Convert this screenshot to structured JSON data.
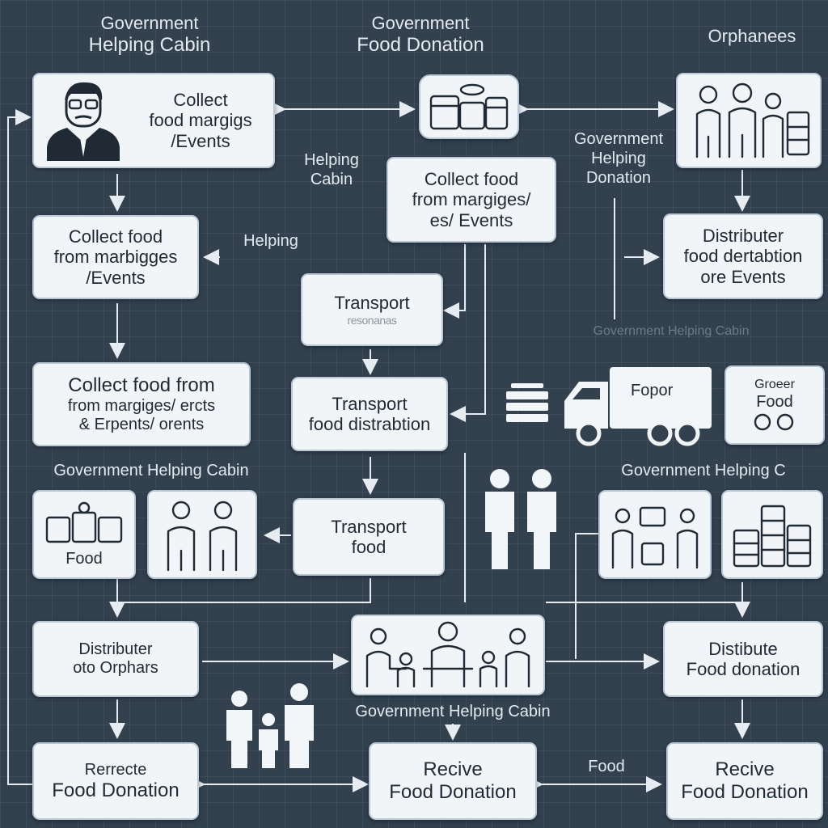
{
  "labels": {
    "gov_helping_cabin_top": [
      "Government",
      "Helping Cabin"
    ],
    "gov_food_donation_top": [
      "Government",
      "Food Donation"
    ],
    "orphanages_top": "Orphanees",
    "helping_cabin_mid": [
      "Helping",
      "Cabin"
    ],
    "gov_helping_donation_right": [
      "Government",
      "Helping",
      "Donation"
    ],
    "helping_left": "Helping",
    "gov_helping_cabin_left": "Government Helping Cabin",
    "gov_helping_cabin_right": "Government Helping C",
    "gov_helping_cabin_bottom": "Government Helping Cabin",
    "food_bottom": "Food",
    "ghost_text": "Government Helping Cabin"
  },
  "boxes": {
    "collect_top_left": [
      "Collect",
      "food margigs",
      "/Events"
    ],
    "collect_mid_center": [
      "Collect food",
      "from margiges/",
      "es/ Events"
    ],
    "collect_left_2": [
      "Collect food",
      "from marbigges",
      "/Events"
    ],
    "distributer_right": [
      "Distributer",
      "food dertabtion",
      "ore Events"
    ],
    "transport_1": [
      "Transport",
      "resonanas"
    ],
    "collect_left_3": [
      "Collect food from",
      "from margiges/ ercts",
      "& Erpents/ orents"
    ],
    "transport_2": [
      "Transport",
      "food distrabtion"
    ],
    "transport_3": [
      "Transport",
      "food"
    ],
    "truck_text": "Fopor",
    "truck_right": [
      "Groeer",
      "Food"
    ],
    "food_box_left": "Food",
    "distribute_orphans": [
      "Distributer",
      "oto Orphars"
    ],
    "distribute_food_right": [
      "Distibute",
      "Food donation"
    ],
    "remote_food_donation": [
      "Rerrecte",
      "Food Donation"
    ],
    "receive_center": [
      "Recive",
      "Food Donation"
    ],
    "receive_right": [
      "Recive",
      "Food Donation"
    ]
  },
  "colors": {
    "background": "#33414f",
    "box_fill": "#f2f5f8",
    "box_border": "#b7c7d6",
    "text_dark": "#1f2a35",
    "arrow": "#e6ecf2"
  },
  "icons": [
    "man-with-glasses-icon",
    "food-containers-icon",
    "three-people-icon",
    "delivery-truck-icon",
    "stacked-plates-icon",
    "food-boxes-icon",
    "two-people-icon",
    "people-with-food-icon",
    "barrels-icon",
    "family-at-table-icon",
    "family-icon"
  ]
}
